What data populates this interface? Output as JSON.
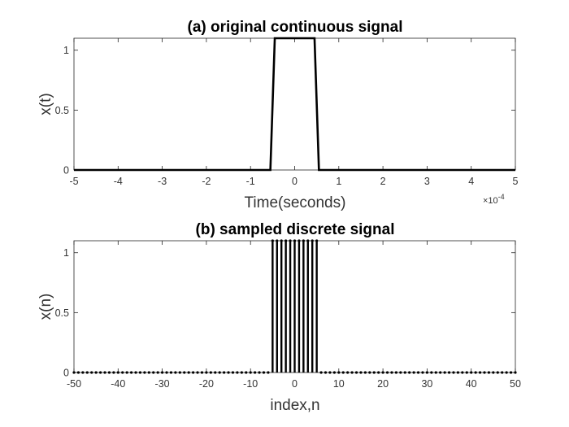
{
  "chart_data": [
    {
      "type": "line",
      "title": "(a) original continuous signal",
      "xlabel": "Time(seconds)",
      "ylabel": "x(t)",
      "x_multiplier": "×10",
      "x_multiplier_exp": "-4",
      "xlim": [
        -5,
        5
      ],
      "ylim": [
        0,
        1.1
      ],
      "xticks": [
        -5,
        -4,
        -3,
        -2,
        -1,
        0,
        1,
        2,
        3,
        4,
        5
      ],
      "xtick_labels": [
        "-5",
        "-4",
        "-3",
        "-2",
        "-1",
        "0",
        "1",
        "2",
        "3",
        "4",
        "5"
      ],
      "yticks": [
        0,
        0.5,
        1
      ],
      "ytick_labels": [
        "0",
        "0.5",
        "1"
      ],
      "grid": false,
      "series": [
        {
          "x": [
            -5,
            -0.55,
            -0.45,
            0.45,
            0.55,
            5
          ],
          "y": [
            0,
            0,
            1.1,
            1.1,
            0,
            0
          ]
        }
      ]
    },
    {
      "type": "stem",
      "title": "(b) sampled discrete signal",
      "xlabel": "index,n",
      "ylabel": "x(n)",
      "xlim": [
        -50,
        50
      ],
      "ylim": [
        0,
        1.1
      ],
      "xticks": [
        -50,
        -40,
        -30,
        -20,
        -10,
        0,
        10,
        20,
        30,
        40,
        50
      ],
      "xtick_labels": [
        "-50",
        "-40",
        "-30",
        "-20",
        "-10",
        "0",
        "10",
        "20",
        "30",
        "40",
        "50"
      ],
      "yticks": [
        0,
        0.5,
        1
      ],
      "ytick_labels": [
        "0",
        "0.5",
        "1"
      ],
      "grid": false,
      "n_range": [
        -50,
        50
      ],
      "nonzero": {
        "n": [
          -5,
          -4,
          -3,
          -2,
          -1,
          0,
          1,
          2,
          3,
          4,
          5
        ],
        "value": 1.1
      },
      "default_value": 0
    }
  ]
}
